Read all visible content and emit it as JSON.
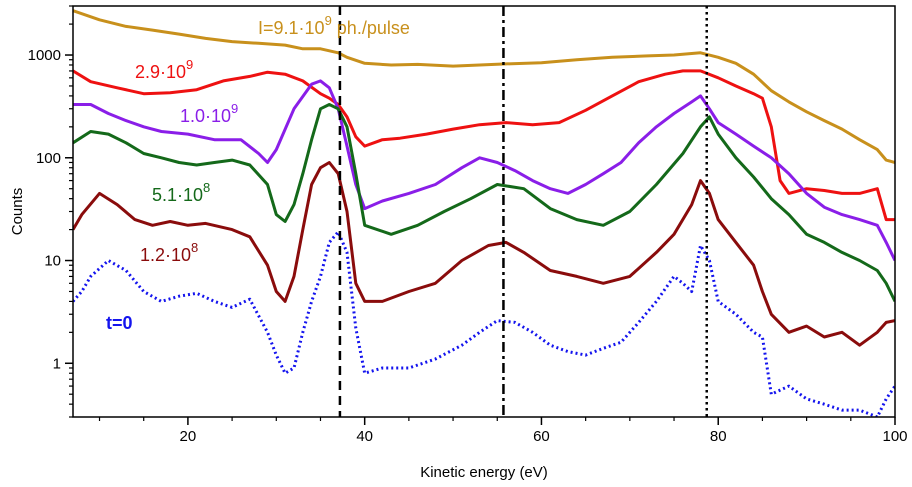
{
  "chart_data": {
    "type": "line",
    "xlabel": "Kinetic energy (eV)",
    "ylabel": "Counts",
    "xlim": [
      7,
      100
    ],
    "ylim": [
      0.3,
      3000
    ],
    "y_scale": "log",
    "grid": false,
    "x_ticks": [
      {
        "value": 20,
        "label": "20"
      },
      {
        "value": 40,
        "label": "40"
      },
      {
        "value": 60,
        "label": "60"
      },
      {
        "value": 80,
        "label": "80"
      },
      {
        "value": 100,
        "label": "100"
      }
    ],
    "y_ticks": [
      {
        "value": 1,
        "label": "1"
      },
      {
        "value": 10,
        "label": "10"
      },
      {
        "value": 100,
        "label": "100"
      },
      {
        "value": 1000,
        "label": "1000"
      }
    ],
    "vlines": [
      {
        "x": 37.2,
        "style": "dashed"
      },
      {
        "x": 55.7,
        "style": "dashdot"
      },
      {
        "x": 78.7,
        "style": "dotted"
      }
    ],
    "series": [
      {
        "label": {
          "base": "I=9.1·10",
          "exp": "9",
          "suffix": " ph./pulse"
        },
        "color": "#c8901c",
        "dash": "solid",
        "x": [
          7,
          10,
          13,
          16,
          19,
          22,
          25,
          28,
          31,
          33,
          35,
          37,
          38,
          40,
          43,
          46,
          50,
          53,
          56,
          60,
          64,
          68,
          72,
          75,
          78,
          80,
          82,
          84,
          86,
          88,
          90,
          92,
          94,
          96,
          98,
          99,
          100
        ],
        "y": [
          2700,
          2200,
          1900,
          1750,
          1600,
          1450,
          1350,
          1300,
          1250,
          1150,
          1150,
          1050,
          950,
          830,
          800,
          810,
          780,
          800,
          820,
          840,
          900,
          950,
          980,
          1000,
          1050,
          950,
          830,
          650,
          450,
          350,
          280,
          230,
          190,
          150,
          120,
          95,
          90
        ]
      },
      {
        "label": {
          "base": "2.9·10",
          "exp": "9",
          "suffix": ""
        },
        "color": "#ee1111",
        "dash": "solid",
        "x": [
          7,
          9,
          12,
          15,
          18,
          21,
          24,
          27,
          29,
          31,
          33,
          35,
          36,
          37,
          38,
          39,
          40,
          42,
          44,
          47,
          50,
          53,
          56,
          59,
          62,
          65,
          68,
          71,
          74,
          76,
          78,
          80,
          82,
          84,
          85,
          86,
          87,
          88,
          90,
          92,
          94,
          96,
          98,
          99,
          100
        ],
        "y": [
          700,
          550,
          480,
          420,
          430,
          460,
          560,
          620,
          680,
          650,
          560,
          420,
          380,
          330,
          250,
          160,
          130,
          150,
          155,
          170,
          190,
          210,
          220,
          210,
          220,
          290,
          400,
          550,
          650,
          700,
          700,
          600,
          500,
          420,
          380,
          200,
          60,
          45,
          50,
          48,
          45,
          45,
          50,
          25,
          25
        ]
      },
      {
        "label": {
          "base": "1.0·10",
          "exp": "9",
          "suffix": ""
        },
        "color": "#8a1ee8",
        "dash": "solid",
        "x": [
          7,
          9,
          11,
          13,
          15,
          17,
          20,
          23,
          26,
          28,
          29,
          30,
          32,
          34,
          35,
          36,
          37,
          38,
          39,
          40,
          42,
          45,
          48,
          51,
          53,
          55,
          57,
          59,
          61,
          63,
          65,
          67,
          69,
          71,
          73,
          75,
          77,
          78,
          79,
          80,
          82,
          84,
          86,
          88,
          90,
          92,
          94,
          96,
          98,
          99,
          100
        ],
        "y": [
          330,
          330,
          270,
          230,
          200,
          180,
          170,
          150,
          150,
          110,
          90,
          120,
          300,
          520,
          560,
          480,
          300,
          130,
          55,
          32,
          38,
          45,
          55,
          80,
          100,
          90,
          75,
          60,
          50,
          45,
          55,
          70,
          90,
          140,
          200,
          270,
          350,
          400,
          300,
          220,
          170,
          130,
          100,
          70,
          45,
          33,
          28,
          25,
          22,
          15,
          10
        ]
      },
      {
        "label": {
          "base": "5.1·10",
          "exp": "8",
          "suffix": ""
        },
        "color": "#14691a",
        "dash": "solid",
        "x": [
          7,
          9,
          11,
          13,
          15,
          17,
          19,
          21,
          23,
          25,
          27,
          29,
          30,
          31,
          32,
          33,
          34,
          35,
          36,
          37,
          38,
          39,
          40,
          43,
          46,
          49,
          52,
          55,
          58,
          61,
          64,
          67,
          70,
          73,
          76,
          78,
          79,
          80,
          82,
          84,
          86,
          88,
          90,
          92,
          94,
          96,
          98,
          99,
          100
        ],
        "y": [
          140,
          180,
          170,
          140,
          110,
          100,
          90,
          85,
          90,
          95,
          85,
          55,
          28,
          24,
          35,
          70,
          150,
          300,
          330,
          300,
          200,
          70,
          22,
          18,
          22,
          30,
          40,
          55,
          50,
          32,
          25,
          22,
          30,
          55,
          110,
          200,
          250,
          170,
          100,
          65,
          40,
          28,
          18,
          15,
          12,
          10,
          8,
          6,
          4
        ]
      },
      {
        "label": {
          "base": "1.2·10",
          "exp": "8",
          "suffix": ""
        },
        "color": "#8a0c0c",
        "dash": "solid",
        "x": [
          7,
          8,
          10,
          12,
          14,
          16,
          18,
          20,
          22,
          25,
          27,
          29,
          30,
          31,
          32,
          33,
          34,
          35,
          36,
          37,
          38,
          39,
          40,
          42,
          45,
          48,
          51,
          54,
          56,
          58,
          61,
          64,
          67,
          70,
          73,
          75,
          77,
          78,
          79,
          80,
          82,
          84,
          85,
          86,
          88,
          90,
          92,
          94,
          96,
          98,
          99,
          100
        ],
        "y": [
          20,
          28,
          45,
          35,
          25,
          22,
          24,
          22,
          23,
          20,
          17,
          9,
          5,
          4,
          7,
          20,
          55,
          80,
          90,
          70,
          30,
          6,
          4,
          4,
          5,
          6,
          10,
          14,
          15,
          12,
          8,
          7,
          6,
          7,
          12,
          18,
          35,
          60,
          45,
          25,
          15,
          9,
          5,
          3,
          2,
          2.3,
          1.8,
          2,
          1.5,
          2,
          2.5,
          2.6
        ]
      },
      {
        "label": {
          "base": "t=0",
          "exp": "",
          "suffix": ""
        },
        "color": "#1414ee",
        "dash": "dotted",
        "x": [
          7,
          8,
          9,
          11,
          13,
          15,
          17,
          19,
          21,
          23,
          25,
          27,
          29,
          30,
          31,
          32,
          33,
          34,
          35,
          36,
          37,
          38,
          39,
          40,
          42,
          45,
          48,
          51,
          53,
          55,
          57,
          59,
          61,
          63,
          65,
          67,
          69,
          71,
          73,
          75,
          76,
          77,
          78,
          79,
          80,
          82,
          84,
          85,
          86,
          88,
          90,
          92,
          94,
          96,
          98,
          99,
          100
        ],
        "y": [
          4,
          5,
          7,
          10,
          8,
          5,
          4,
          4.5,
          4.8,
          4,
          3.5,
          4.2,
          2,
          1.2,
          0.8,
          0.9,
          2,
          4,
          7,
          15,
          19,
          12,
          2.2,
          0.8,
          0.9,
          0.9,
          1.1,
          1.5,
          2,
          2.6,
          2.5,
          2,
          1.5,
          1.3,
          1.2,
          1.4,
          1.6,
          2.5,
          4,
          7,
          6,
          5,
          14,
          10,
          4,
          3,
          2,
          1.8,
          0.5,
          0.6,
          0.45,
          0.4,
          0.35,
          0.35,
          0.3,
          0.45,
          0.6
        ]
      }
    ]
  }
}
